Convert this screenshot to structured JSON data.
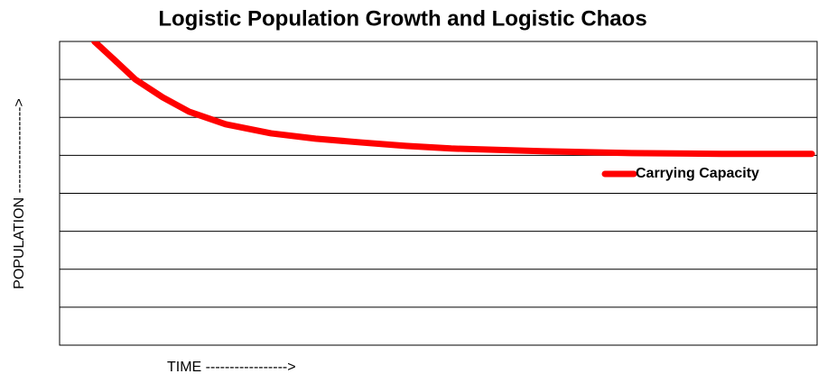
{
  "chart_data": {
    "type": "line",
    "title": "Logistic Population Growth and Logistic Chaos",
    "x_label": "TIME ----------------->",
    "y_label": "POPULATION ------------------>",
    "x": [
      4.6,
      6.4,
      10,
      13.6,
      17.1,
      21.9,
      27.9,
      33.8,
      39.8,
      45.7,
      51.7,
      63.6,
      75.5,
      87.4,
      99.3
    ],
    "series": [
      {
        "name": "Carrying Capacity",
        "color": "#ff0000",
        "values": [
          8.0,
          7.67,
          7.0,
          6.53,
          6.15,
          5.82,
          5.58,
          5.44,
          5.34,
          5.25,
          5.18,
          5.11,
          5.06,
          5.04,
          5.04
        ]
      }
    ],
    "xlim": [
      0,
      100
    ],
    "ylim": [
      0,
      8
    ],
    "yticks": [
      0,
      1,
      2,
      3,
      4,
      5,
      6,
      7,
      8
    ],
    "show_tick_labels": false,
    "grid": true,
    "legend": "right"
  }
}
